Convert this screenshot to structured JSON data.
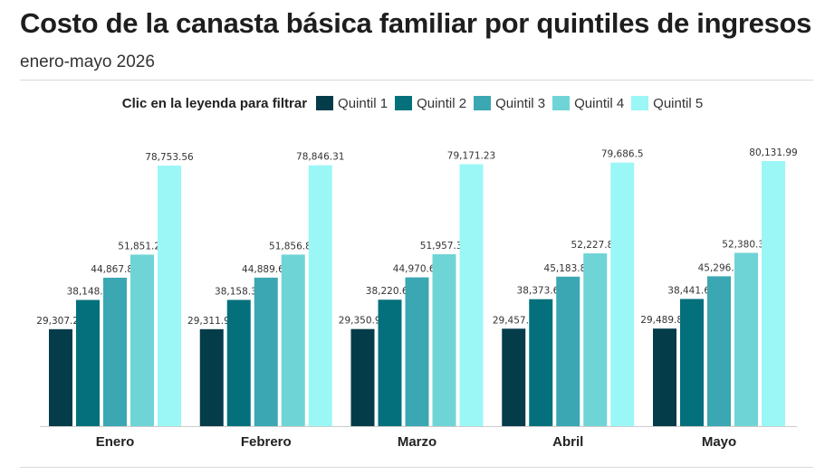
{
  "title": "Costo de la canasta básica familiar por quintiles de ingresos",
  "subtitle": "enero-mayo 2026",
  "legend_hint": "Clic en la leyenda para filtrar",
  "colors": [
    "#043c4a",
    "#03707c",
    "#3aa7b3",
    "#6fd4d6",
    "#9bf7f5"
  ],
  "chart_data": {
    "type": "bar",
    "categories": [
      "Enero",
      "Febrero",
      "Marzo",
      "Abril",
      "Mayo"
    ],
    "series": [
      {
        "name": "Quintil 1",
        "values": [
          29307.28,
          29311.98,
          29350.98,
          29457.9,
          29489.84
        ],
        "labels": [
          "29,307.28",
          "29,311.98",
          "29,350.98",
          "29,457.9",
          "29,489.84"
        ]
      },
      {
        "name": "Quintil 2",
        "values": [
          38148.4,
          38158.33,
          38220.69,
          38373.69,
          38441.67
        ],
        "labels": [
          "38,148.4",
          "38,158.33",
          "38,220.69",
          "38,373.69",
          "38,441.67"
        ]
      },
      {
        "name": "Quintil 3",
        "values": [
          44867.86,
          44889.67,
          44970.61,
          45183.83,
          45296.5
        ],
        "labels": [
          "44,867.86",
          "44,889.67",
          "44,970.61",
          "45,183.83",
          "45,296.5"
        ]
      },
      {
        "name": "Quintil 4",
        "values": [
          51851.21,
          51856.84,
          51957.39,
          52227.85,
          52380.36
        ],
        "labels": [
          "51,851.21",
          "51,856.84",
          "51,957.39",
          "52,227.85",
          "52,380.36"
        ]
      },
      {
        "name": "Quintil 5",
        "values": [
          78753.56,
          78846.31,
          79171.23,
          79686.5,
          80131.99
        ],
        "labels": [
          "78,753.56",
          "78,846.31",
          "79,171.23",
          "79,686.5",
          "80,131.99"
        ]
      }
    ],
    "xlabel": "",
    "ylabel": "",
    "ylim": [
      0,
      80131.99
    ],
    "grid": false,
    "legend_position": "top-center"
  }
}
